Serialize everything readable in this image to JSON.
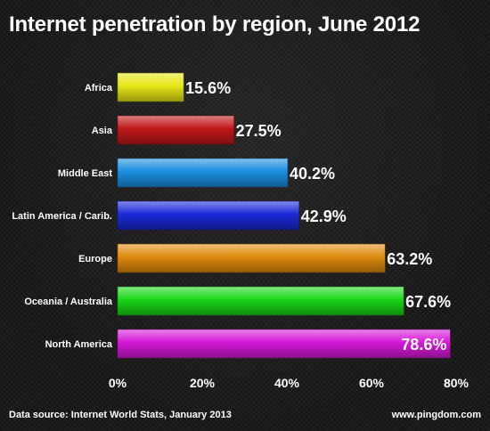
{
  "chart_data": {
    "type": "bar",
    "orientation": "horizontal",
    "title": "Internet penetration by region, June 2012",
    "categories": [
      "Africa",
      "Asia",
      "Middle East",
      "Latin America / Carib.",
      "Europe",
      "Oceania / Australia",
      "North America"
    ],
    "values": [
      15.6,
      27.5,
      40.2,
      42.9,
      63.2,
      67.6,
      78.6
    ],
    "value_labels": [
      "15.6%",
      "27.5%",
      "40.2%",
      "42.9%",
      "63.2%",
      "67.6%",
      "78.6%"
    ],
    "colors": [
      "#e6e615",
      "#c01818",
      "#1a8fe0",
      "#1a2ad8",
      "#e08a0c",
      "#18d818",
      "#d818d8"
    ],
    "xlim": [
      0,
      80
    ],
    "x_ticks": [
      0,
      20,
      40,
      60,
      80
    ],
    "x_tick_labels": [
      "0%",
      "20%",
      "40%",
      "60%",
      "80%"
    ],
    "grid": false,
    "legend": "none"
  },
  "footer": {
    "source": "Data source: Internet World Stats, January 2013",
    "site": "www.pingdom.com"
  }
}
